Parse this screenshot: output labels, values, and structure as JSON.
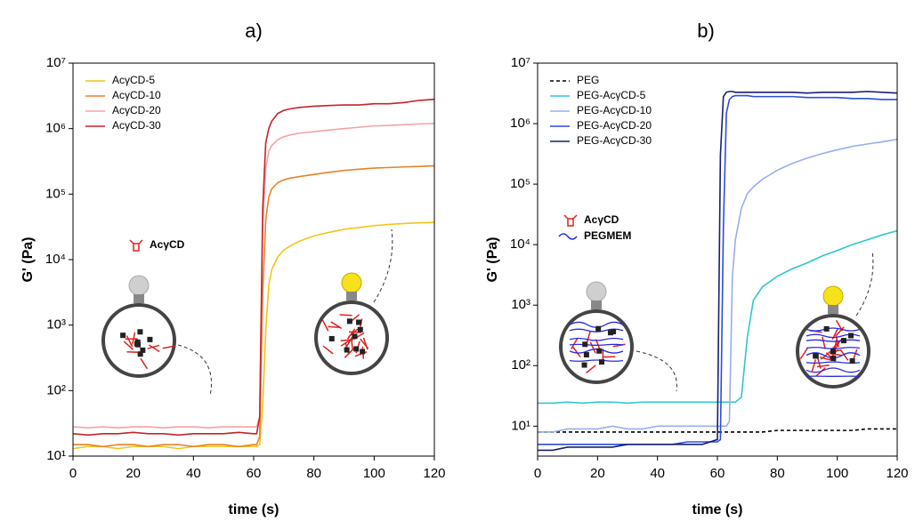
{
  "chart_data": [
    {
      "type": "line",
      "title": "a)",
      "x_label": "time (s)",
      "y_label": "G' (Pa)",
      "log_y": true,
      "legend": "upper left",
      "xlim": [
        0,
        120
      ],
      "xticks": [
        0,
        20,
        40,
        60,
        80,
        100,
        120
      ],
      "ylim": [
        10,
        10000000
      ],
      "yticks": [
        {
          "value": 10,
          "label": "10¹"
        },
        {
          "value": 100,
          "label": "10²"
        },
        {
          "value": 1000,
          "label": "10³"
        },
        {
          "value": 10000,
          "label": "10⁴"
        },
        {
          "value": 100000,
          "label": "10⁵"
        },
        {
          "value": 1000000,
          "label": "10⁶"
        },
        {
          "value": 10000000,
          "label": "10⁷"
        }
      ],
      "annotations": [
        {
          "text": "AcγCD",
          "color": "#e02020"
        }
      ],
      "x": [
        0,
        5,
        10,
        15,
        20,
        25,
        30,
        35,
        40,
        45,
        50,
        55,
        60,
        61,
        62,
        63,
        64,
        65,
        66,
        68,
        70,
        72,
        75,
        80,
        85,
        90,
        95,
        100,
        105,
        110,
        115,
        120
      ],
      "series": [
        {
          "name": "AcγCD-5",
          "color": "#f2c417",
          "style": "solid",
          "values": [
            13,
            14,
            14,
            13,
            14,
            14,
            14,
            13,
            14,
            14,
            14,
            14,
            14,
            14,
            15,
            60,
            800,
            4000,
            7000,
            11000,
            14000,
            16000,
            19000,
            23000,
            26000,
            29000,
            31000,
            33000,
            34500,
            35500,
            36500,
            37000
          ]
        },
        {
          "name": "AcγCD-10",
          "color": "#e8822a",
          "style": "solid",
          "values": [
            15,
            15,
            14,
            15,
            15,
            14,
            15,
            15,
            14,
            15,
            15,
            14,
            15,
            15,
            20,
            3000,
            40000,
            90000,
            120000,
            150000,
            165000,
            175000,
            185000,
            200000,
            215000,
            230000,
            240000,
            250000,
            255000,
            260000,
            265000,
            270000
          ]
        },
        {
          "name": "AcγCD-20",
          "color": "#f4a3a3",
          "style": "solid",
          "values": [
            28,
            27,
            28,
            27,
            28,
            28,
            27,
            28,
            28,
            27,
            28,
            28,
            28,
            28,
            40,
            30000,
            250000,
            450000,
            550000,
            680000,
            750000,
            800000,
            850000,
            900000,
            950000,
            1000000,
            1050000,
            1100000,
            1120000,
            1150000,
            1180000,
            1200000
          ]
        },
        {
          "name": "AcγCD-30",
          "color": "#c4242a",
          "style": "solid",
          "values": [
            22,
            21,
            22,
            22,
            23,
            22,
            22,
            21,
            22,
            22,
            22,
            23,
            22,
            22,
            40,
            60000,
            600000,
            1000000,
            1300000,
            1700000,
            1900000,
            2000000,
            2100000,
            2200000,
            2250000,
            2300000,
            2300000,
            2400000,
            2400000,
            2500000,
            2700000,
            2800000
          ]
        }
      ]
    },
    {
      "type": "line",
      "title": "b)",
      "x_label": "time (s)",
      "y_label": "G' (Pa)",
      "log_y": true,
      "legend": "upper left",
      "xlim": [
        0,
        120
      ],
      "xticks": [
        0,
        20,
        40,
        60,
        80,
        100,
        120
      ],
      "ylim": [
        3.2,
        10000000
      ],
      "yticks": [
        {
          "value": 10,
          "label": "10¹"
        },
        {
          "value": 100,
          "label": "10²"
        },
        {
          "value": 1000,
          "label": "10³"
        },
        {
          "value": 10000,
          "label": "10⁴"
        },
        {
          "value": 100000,
          "label": "10⁵"
        },
        {
          "value": 1000000,
          "label": "10⁶"
        },
        {
          "value": 10000000,
          "label": "10⁷"
        }
      ],
      "annotations": [
        {
          "text": "AcγCD",
          "color": "#e02020"
        },
        {
          "text": "PEGMEM",
          "color": "#2a2ae0"
        }
      ],
      "x": [
        0,
        5,
        10,
        15,
        20,
        25,
        30,
        35,
        40,
        45,
        50,
        55,
        60,
        61,
        62,
        63,
        64,
        65,
        66,
        68,
        70,
        72,
        75,
        80,
        85,
        90,
        95,
        100,
        105,
        110,
        115,
        120
      ],
      "series": [
        {
          "name": "PEG",
          "color": "#000000",
          "style": "dashed",
          "values": [
            8,
            8,
            8,
            8,
            8,
            8,
            8,
            8,
            8,
            8,
            8,
            8,
            8,
            8,
            8,
            8,
            8,
            8,
            8,
            8,
            8,
            8,
            8,
            8.5,
            8.5,
            8.5,
            8.5,
            8.5,
            8.5,
            9,
            9,
            9
          ]
        },
        {
          "name": "PEG-AcγCD-5",
          "color": "#2ec8c8",
          "style": "solid",
          "values": [
            24,
            24,
            25,
            24,
            25,
            25,
            24,
            25,
            25,
            25,
            25,
            25,
            25,
            25,
            25,
            25,
            25,
            25,
            25,
            30,
            300,
            1200,
            2000,
            3000,
            4000,
            5000,
            6500,
            8000,
            10000,
            12000,
            14500,
            17000
          ]
        },
        {
          "name": "PEG-AcγCD-10",
          "color": "#98aef0",
          "style": "solid",
          "values": [
            8,
            8,
            9,
            9,
            9,
            10,
            9,
            9,
            10,
            10,
            10,
            10,
            10,
            10,
            10,
            10,
            12,
            3000,
            12000,
            40000,
            70000,
            90000,
            120000,
            170000,
            220000,
            270000,
            320000,
            370000,
            420000,
            460000,
            500000,
            550000
          ]
        },
        {
          "name": "PEG-AcγCD-20",
          "color": "#2a4fd8",
          "style": "solid",
          "values": [
            5,
            5,
            5,
            5,
            5,
            5,
            5,
            5,
            5,
            5,
            5.5,
            5.5,
            5.5,
            6,
            20000,
            1500000,
            2500000,
            2800000,
            2900000,
            2900000,
            2900000,
            2800000,
            2800000,
            2800000,
            2800000,
            2700000,
            2700000,
            2700000,
            2600000,
            2600000,
            2500000,
            2500000
          ]
        },
        {
          "name": "PEG-AcγCD-30",
          "color": "#16206e",
          "style": "solid",
          "values": [
            4,
            4,
            4.5,
            4.5,
            4.5,
            4.5,
            5,
            5,
            5,
            5,
            5,
            5,
            6,
            300000,
            2800000,
            3300000,
            3400000,
            3400000,
            3300000,
            3300000,
            3300000,
            3300000,
            3300000,
            3300000,
            3300000,
            3200000,
            3300000,
            3300000,
            3300000,
            3400000,
            3300000,
            3200000
          ]
        }
      ]
    }
  ]
}
